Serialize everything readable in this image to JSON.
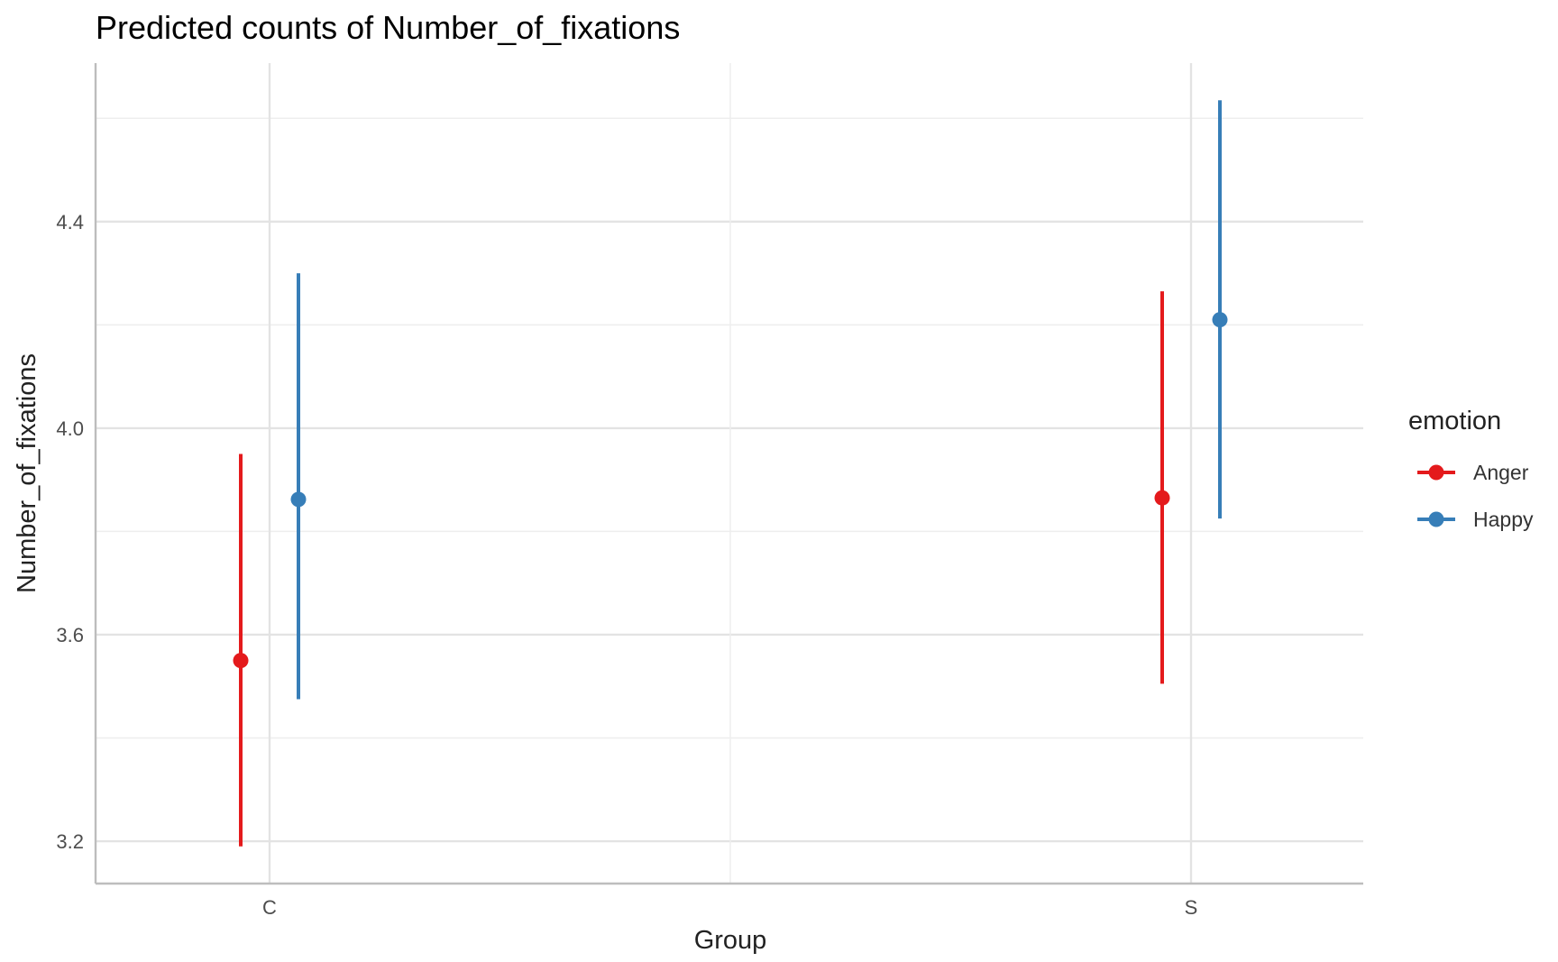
{
  "chart_data": {
    "type": "scatter",
    "title": "Predicted counts of Number_of_fixations",
    "xlabel": "Group",
    "ylabel": "Number_of_fixations",
    "categories": [
      "C",
      "S"
    ],
    "ylim": [
      3.118,
      4.707
    ],
    "yticks": [
      3.2,
      3.6,
      4.0,
      4.4
    ],
    "ytick_labels": [
      "3.2",
      "3.6",
      "4.0",
      "4.4"
    ],
    "grid": true,
    "legend": {
      "title": "emotion",
      "position": "right"
    },
    "series": [
      {
        "name": "Anger",
        "color": "#E41A1C",
        "points": [
          {
            "group": "C",
            "estimate": 3.55,
            "lower": 3.19,
            "upper": 3.95
          },
          {
            "group": "S",
            "estimate": 3.865,
            "lower": 3.505,
            "upper": 4.265
          }
        ]
      },
      {
        "name": "Happy",
        "color": "#377EB8",
        "points": [
          {
            "group": "C",
            "estimate": 3.862,
            "lower": 3.475,
            "upper": 4.3
          },
          {
            "group": "S",
            "estimate": 4.21,
            "lower": 3.825,
            "upper": 4.635
          }
        ]
      }
    ]
  }
}
